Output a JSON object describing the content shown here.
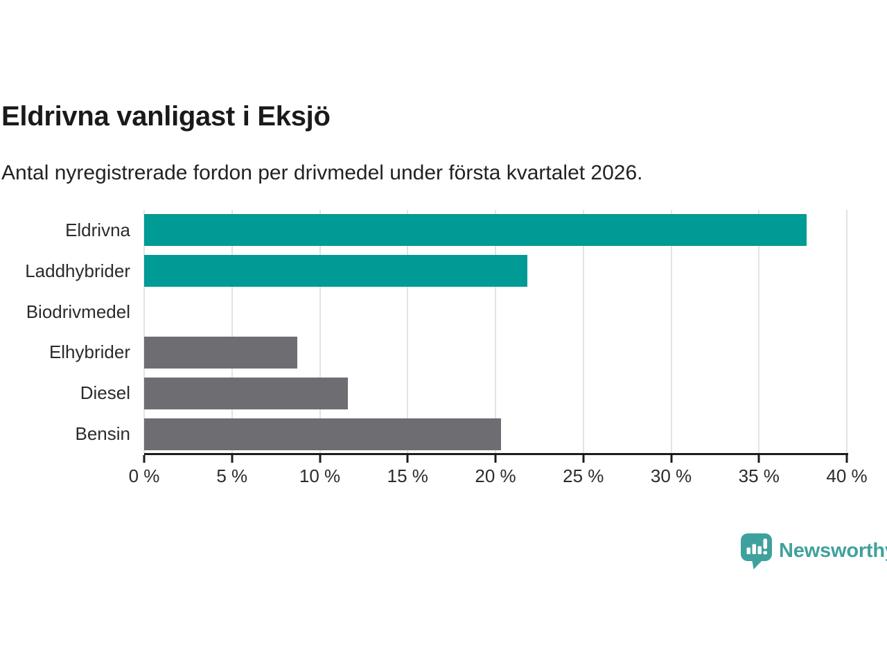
{
  "chart_data": {
    "type": "bar",
    "orientation": "horizontal",
    "title": "Eldrivna vanligast i Eksjö",
    "subtitle": "Antal nyregistrerade fordon per drivmedel under första kvartalet 2026.",
    "categories": [
      "Eldrivna",
      "Laddhybrider",
      "Biodrivmedel",
      "Elhybrider",
      "Diesel",
      "Bensin"
    ],
    "values": [
      37.7,
      21.8,
      0,
      8.7,
      11.6,
      20.3
    ],
    "unit": "%",
    "xlim": [
      0,
      40
    ],
    "xticks": [
      0,
      5,
      10,
      15,
      20,
      25,
      30,
      35,
      40
    ],
    "xtick_labels": [
      "0 %",
      "5 %",
      "10 %",
      "15 %",
      "20 %",
      "25 %",
      "30 %",
      "35 %",
      "40 %"
    ],
    "bar_colors": [
      "#009B94",
      "#009B94",
      "#009B94",
      "#6D6D72",
      "#6D6D72",
      "#6D6D72"
    ],
    "colors": {
      "highlight": "#009B94",
      "default": "#6D6D72",
      "gridline": "#e3e3e3",
      "axis": "#1c1c1c"
    },
    "grid": "vertical",
    "legend": "none"
  },
  "footer": {
    "brand_name": "Newsworthy",
    "brand_color": "#3FA19D",
    "icon": "newsworthy-speech-bubble-chart-icon"
  }
}
